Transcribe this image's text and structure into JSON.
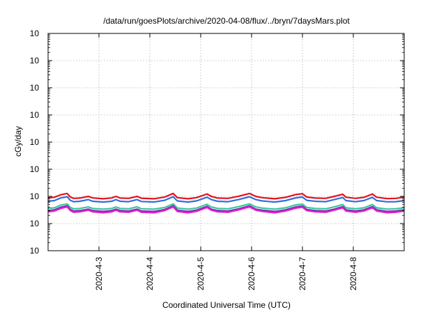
{
  "chart_data": {
    "type": "line",
    "title": "/data/run/goesPlots/archive/2020-04-08/flux/../bryn/7daysMars.plot",
    "xlabel": "Coordinated Universal Time (UTC)",
    "ylabel": "cGy/day",
    "yscale": "log",
    "ylim": [
      0.0001,
      10000
    ],
    "xlim": [
      "2020-04-02",
      "2020-04-09"
    ],
    "grid": true,
    "legend": "none",
    "y_ticks": [
      {
        "value": 0.0001,
        "base": "10",
        "exp": "-4"
      },
      {
        "value": 0.001,
        "base": "10",
        "exp": "-3"
      },
      {
        "value": 0.01,
        "base": "10",
        "exp": "-2"
      },
      {
        "value": 0.1,
        "base": "10",
        "exp": "-1"
      },
      {
        "value": 1,
        "base": "10",
        "exp": "0"
      },
      {
        "value": 10,
        "base": "10",
        "exp": "1"
      },
      {
        "value": 100,
        "base": "10",
        "exp": "2"
      },
      {
        "value": 1000,
        "base": "10",
        "exp": "3"
      },
      {
        "value": 10000,
        "base": "10",
        "exp": "4"
      }
    ],
    "x_ticks": [
      {
        "value": "2020-04-03",
        "label": "2020-4-3"
      },
      {
        "value": "2020-04-04",
        "label": "2020-4-4"
      },
      {
        "value": "2020-04-05",
        "label": "2020-4-5"
      },
      {
        "value": "2020-04-06",
        "label": "2020-4-6"
      },
      {
        "value": "2020-04-07",
        "label": "2020-4-7"
      },
      {
        "value": "2020-04-08",
        "label": "2020-4-8"
      }
    ],
    "series": [
      {
        "color": "#e8101a",
        "points": [
          [
            "2020-04-02T00:00",
            0.0088
          ],
          [
            "2020-04-02T03:00",
            0.0093
          ],
          [
            "2020-04-02T06:00",
            0.0115
          ],
          [
            "2020-04-02T09:00",
            0.0128
          ],
          [
            "2020-04-02T10:30",
            0.0095
          ],
          [
            "2020-04-02T12:00",
            0.0085
          ],
          [
            "2020-04-02T15:00",
            0.0087
          ],
          [
            "2020-04-02T19:00",
            0.01
          ],
          [
            "2020-04-02T21:00",
            0.0088
          ],
          [
            "2020-04-03T02:00",
            0.0082
          ],
          [
            "2020-04-03T06:00",
            0.0088
          ],
          [
            "2020-04-03T08:00",
            0.01
          ],
          [
            "2020-04-03T10:00",
            0.0087
          ],
          [
            "2020-04-03T14:00",
            0.0085
          ],
          [
            "2020-04-03T18:00",
            0.01
          ],
          [
            "2020-04-03T20:00",
            0.0086
          ],
          [
            "2020-04-04T02:00",
            0.0082
          ],
          [
            "2020-04-04T07:00",
            0.0095
          ],
          [
            "2020-04-04T11:00",
            0.0128
          ],
          [
            "2020-04-04T13:00",
            0.009
          ],
          [
            "2020-04-04T18:00",
            0.0082
          ],
          [
            "2020-04-04T22:00",
            0.009
          ],
          [
            "2020-04-05T03:00",
            0.0123
          ],
          [
            "2020-04-05T05:00",
            0.01
          ],
          [
            "2020-04-05T08:00",
            0.0087
          ],
          [
            "2020-04-05T13:00",
            0.0085
          ],
          [
            "2020-04-05T18:00",
            0.0102
          ],
          [
            "2020-04-05T23:00",
            0.0128
          ],
          [
            "2020-04-06T02:00",
            0.01
          ],
          [
            "2020-04-06T05:00",
            0.009
          ],
          [
            "2020-04-06T11:00",
            0.0082
          ],
          [
            "2020-04-06T16:00",
            0.0092
          ],
          [
            "2020-04-06T21:00",
            0.0118
          ],
          [
            "2020-04-07T00:00",
            0.0125
          ],
          [
            "2020-04-07T02:00",
            0.0095
          ],
          [
            "2020-04-07T06:00",
            0.0087
          ],
          [
            "2020-04-07T11:00",
            0.0085
          ],
          [
            "2020-04-07T15:00",
            0.01
          ],
          [
            "2020-04-07T19:00",
            0.012
          ],
          [
            "2020-04-07T20:30",
            0.0093
          ],
          [
            "2020-04-08T01:00",
            0.0085
          ],
          [
            "2020-04-08T05:00",
            0.0092
          ],
          [
            "2020-04-08T09:00",
            0.0122
          ],
          [
            "2020-04-08T11:00",
            0.0093
          ],
          [
            "2020-04-08T16:00",
            0.0083
          ],
          [
            "2020-04-08T20:00",
            0.0085
          ],
          [
            "2020-04-09T00:00",
            0.0093
          ]
        ]
      },
      {
        "color": "#2f6fe0",
        "points": [
          [
            "2020-04-02T00:00",
            0.0066
          ],
          [
            "2020-04-02T03:00",
            0.007
          ],
          [
            "2020-04-02T06:00",
            0.0088
          ],
          [
            "2020-04-02T09:00",
            0.0097
          ],
          [
            "2020-04-02T10:30",
            0.0072
          ],
          [
            "2020-04-02T12:00",
            0.0064
          ],
          [
            "2020-04-02T15:00",
            0.0066
          ],
          [
            "2020-04-02T19:00",
            0.0076
          ],
          [
            "2020-04-02T21:00",
            0.0066
          ],
          [
            "2020-04-03T02:00",
            0.0062
          ],
          [
            "2020-04-03T06:00",
            0.0066
          ],
          [
            "2020-04-03T08:00",
            0.0076
          ],
          [
            "2020-04-03T10:00",
            0.0066
          ],
          [
            "2020-04-03T14:00",
            0.0064
          ],
          [
            "2020-04-03T18:00",
            0.0076
          ],
          [
            "2020-04-03T20:00",
            0.0065
          ],
          [
            "2020-04-04T02:00",
            0.0062
          ],
          [
            "2020-04-04T07:00",
            0.0072
          ],
          [
            "2020-04-04T11:00",
            0.0097
          ],
          [
            "2020-04-04T13:00",
            0.0068
          ],
          [
            "2020-04-04T18:00",
            0.0062
          ],
          [
            "2020-04-04T22:00",
            0.0068
          ],
          [
            "2020-04-05T03:00",
            0.0093
          ],
          [
            "2020-04-05T05:00",
            0.0076
          ],
          [
            "2020-04-05T08:00",
            0.0066
          ],
          [
            "2020-04-05T13:00",
            0.0064
          ],
          [
            "2020-04-05T18:00",
            0.0077
          ],
          [
            "2020-04-05T23:00",
            0.0097
          ],
          [
            "2020-04-06T02:00",
            0.0076
          ],
          [
            "2020-04-06T05:00",
            0.0068
          ],
          [
            "2020-04-06T11:00",
            0.0062
          ],
          [
            "2020-04-06T16:00",
            0.007
          ],
          [
            "2020-04-06T21:00",
            0.0089
          ],
          [
            "2020-04-07T00:00",
            0.0095
          ],
          [
            "2020-04-07T02:00",
            0.0072
          ],
          [
            "2020-04-07T06:00",
            0.0066
          ],
          [
            "2020-04-07T11:00",
            0.0064
          ],
          [
            "2020-04-07T15:00",
            0.0076
          ],
          [
            "2020-04-07T19:00",
            0.0091
          ],
          [
            "2020-04-07T20:30",
            0.007
          ],
          [
            "2020-04-08T01:00",
            0.0064
          ],
          [
            "2020-04-08T05:00",
            0.007
          ],
          [
            "2020-04-08T09:00",
            0.0092
          ],
          [
            "2020-04-08T11:00",
            0.007
          ],
          [
            "2020-04-08T16:00",
            0.0063
          ],
          [
            "2020-04-08T20:00",
            0.0064
          ],
          [
            "2020-04-09T00:00",
            0.007
          ]
        ]
      },
      {
        "color": "#39c4a0",
        "points": [
          [
            "2020-04-02T00:00",
            0.0036
          ],
          [
            "2020-04-02T03:00",
            0.0038
          ],
          [
            "2020-04-02T06:00",
            0.0048
          ],
          [
            "2020-04-02T09:00",
            0.0053
          ],
          [
            "2020-04-02T10:30",
            0.0039
          ],
          [
            "2020-04-02T12:00",
            0.0035
          ],
          [
            "2020-04-02T15:00",
            0.0036
          ],
          [
            "2020-04-02T19:00",
            0.0041
          ],
          [
            "2020-04-02T21:00",
            0.0036
          ],
          [
            "2020-04-03T02:00",
            0.0034
          ],
          [
            "2020-04-03T06:00",
            0.0036
          ],
          [
            "2020-04-03T08:00",
            0.0041
          ],
          [
            "2020-04-03T10:00",
            0.0036
          ],
          [
            "2020-04-03T14:00",
            0.0035
          ],
          [
            "2020-04-03T18:00",
            0.0041
          ],
          [
            "2020-04-03T20:00",
            0.0035
          ],
          [
            "2020-04-04T02:00",
            0.0034
          ],
          [
            "2020-04-04T07:00",
            0.0039
          ],
          [
            "2020-04-04T11:00",
            0.0053
          ],
          [
            "2020-04-04T13:00",
            0.0037
          ],
          [
            "2020-04-04T18:00",
            0.0034
          ],
          [
            "2020-04-04T22:00",
            0.0037
          ],
          [
            "2020-04-05T03:00",
            0.0051
          ],
          [
            "2020-04-05T05:00",
            0.0041
          ],
          [
            "2020-04-05T08:00",
            0.0036
          ],
          [
            "2020-04-05T13:00",
            0.0035
          ],
          [
            "2020-04-05T18:00",
            0.0042
          ],
          [
            "2020-04-05T23:00",
            0.0053
          ],
          [
            "2020-04-06T02:00",
            0.0041
          ],
          [
            "2020-04-06T05:00",
            0.0037
          ],
          [
            "2020-04-06T11:00",
            0.0034
          ],
          [
            "2020-04-06T16:00",
            0.0038
          ],
          [
            "2020-04-06T21:00",
            0.0049
          ],
          [
            "2020-04-07T00:00",
            0.0052
          ],
          [
            "2020-04-07T02:00",
            0.0039
          ],
          [
            "2020-04-07T06:00",
            0.0036
          ],
          [
            "2020-04-07T11:00",
            0.0035
          ],
          [
            "2020-04-07T15:00",
            0.0041
          ],
          [
            "2020-04-07T19:00",
            0.005
          ],
          [
            "2020-04-07T20:30",
            0.0038
          ],
          [
            "2020-04-08T01:00",
            0.0035
          ],
          [
            "2020-04-08T05:00",
            0.0038
          ],
          [
            "2020-04-08T09:00",
            0.005
          ],
          [
            "2020-04-08T11:00",
            0.0038
          ],
          [
            "2020-04-08T16:00",
            0.0034
          ],
          [
            "2020-04-08T20:00",
            0.0035
          ],
          [
            "2020-04-09T00:00",
            0.0038
          ]
        ]
      },
      {
        "color": "#7a2fb0",
        "points": [
          [
            "2020-04-02T00:00",
            0.003
          ],
          [
            "2020-04-02T03:00",
            0.0032
          ],
          [
            "2020-04-02T06:00",
            0.004
          ],
          [
            "2020-04-02T09:00",
            0.0045
          ],
          [
            "2020-04-02T10:30",
            0.0033
          ],
          [
            "2020-04-02T12:00",
            0.0029
          ],
          [
            "2020-04-02T15:00",
            0.003
          ],
          [
            "2020-04-02T19:00",
            0.0034
          ],
          [
            "2020-04-02T21:00",
            0.003
          ],
          [
            "2020-04-03T02:00",
            0.0028
          ],
          [
            "2020-04-03T06:00",
            0.003
          ],
          [
            "2020-04-03T08:00",
            0.0034
          ],
          [
            "2020-04-03T10:00",
            0.003
          ],
          [
            "2020-04-03T14:00",
            0.0029
          ],
          [
            "2020-04-03T18:00",
            0.0034
          ],
          [
            "2020-04-03T20:00",
            0.0029
          ],
          [
            "2020-04-04T02:00",
            0.0028
          ],
          [
            "2020-04-04T07:00",
            0.0033
          ],
          [
            "2020-04-04T11:00",
            0.0045
          ],
          [
            "2020-04-04T13:00",
            0.0031
          ],
          [
            "2020-04-04T18:00",
            0.0028
          ],
          [
            "2020-04-04T22:00",
            0.0031
          ],
          [
            "2020-04-05T03:00",
            0.0043
          ],
          [
            "2020-04-05T05:00",
            0.0034
          ],
          [
            "2020-04-05T08:00",
            0.003
          ],
          [
            "2020-04-05T13:00",
            0.0029
          ],
          [
            "2020-04-05T18:00",
            0.0035
          ],
          [
            "2020-04-05T23:00",
            0.0045
          ],
          [
            "2020-04-06T02:00",
            0.0034
          ],
          [
            "2020-04-06T05:00",
            0.0031
          ],
          [
            "2020-04-06T11:00",
            0.0028
          ],
          [
            "2020-04-06T16:00",
            0.0032
          ],
          [
            "2020-04-06T21:00",
            0.0041
          ],
          [
            "2020-04-07T00:00",
            0.0044
          ],
          [
            "2020-04-07T02:00",
            0.0033
          ],
          [
            "2020-04-07T06:00",
            0.003
          ],
          [
            "2020-04-07T11:00",
            0.0029
          ],
          [
            "2020-04-07T15:00",
            0.0034
          ],
          [
            "2020-04-07T19:00",
            0.0042
          ],
          [
            "2020-04-07T20:30",
            0.0032
          ],
          [
            "2020-04-08T01:00",
            0.0029
          ],
          [
            "2020-04-08T05:00",
            0.0032
          ],
          [
            "2020-04-08T09:00",
            0.0042
          ],
          [
            "2020-04-08T11:00",
            0.0032
          ],
          [
            "2020-04-08T16:00",
            0.0028
          ],
          [
            "2020-04-08T20:00",
            0.0029
          ],
          [
            "2020-04-09T00:00",
            0.0032
          ]
        ]
      },
      {
        "color": "#e81ccf",
        "points": [
          [
            "2020-04-02T00:00",
            0.0027
          ],
          [
            "2020-04-02T03:00",
            0.0029
          ],
          [
            "2020-04-02T06:00",
            0.0036
          ],
          [
            "2020-04-02T09:00",
            0.0041
          ],
          [
            "2020-04-02T10:30",
            0.003
          ],
          [
            "2020-04-02T12:00",
            0.0026
          ],
          [
            "2020-04-02T15:00",
            0.0027
          ],
          [
            "2020-04-02T19:00",
            0.0031
          ],
          [
            "2020-04-02T21:00",
            0.0027
          ],
          [
            "2020-04-03T02:00",
            0.0025
          ],
          [
            "2020-04-03T06:00",
            0.0027
          ],
          [
            "2020-04-03T08:00",
            0.0031
          ],
          [
            "2020-04-03T10:00",
            0.0027
          ],
          [
            "2020-04-03T14:00",
            0.0026
          ],
          [
            "2020-04-03T18:00",
            0.0031
          ],
          [
            "2020-04-03T20:00",
            0.0026
          ],
          [
            "2020-04-04T02:00",
            0.0025
          ],
          [
            "2020-04-04T07:00",
            0.003
          ],
          [
            "2020-04-04T11:00",
            0.0041
          ],
          [
            "2020-04-04T13:00",
            0.0028
          ],
          [
            "2020-04-04T18:00",
            0.0025
          ],
          [
            "2020-04-04T22:00",
            0.0028
          ],
          [
            "2020-04-05T03:00",
            0.0039
          ],
          [
            "2020-04-05T05:00",
            0.0031
          ],
          [
            "2020-04-05T08:00",
            0.0027
          ],
          [
            "2020-04-05T13:00",
            0.0026
          ],
          [
            "2020-04-05T18:00",
            0.0032
          ],
          [
            "2020-04-05T23:00",
            0.0041
          ],
          [
            "2020-04-06T02:00",
            0.0031
          ],
          [
            "2020-04-06T05:00",
            0.0028
          ],
          [
            "2020-04-06T11:00",
            0.0025
          ],
          [
            "2020-04-06T16:00",
            0.0029
          ],
          [
            "2020-04-06T21:00",
            0.0037
          ],
          [
            "2020-04-07T00:00",
            0.004
          ],
          [
            "2020-04-07T02:00",
            0.003
          ],
          [
            "2020-04-07T06:00",
            0.0027
          ],
          [
            "2020-04-07T11:00",
            0.0026
          ],
          [
            "2020-04-07T15:00",
            0.0031
          ],
          [
            "2020-04-07T19:00",
            0.0038
          ],
          [
            "2020-04-07T20:30",
            0.0029
          ],
          [
            "2020-04-08T01:00",
            0.0026
          ],
          [
            "2020-04-08T05:00",
            0.0029
          ],
          [
            "2020-04-08T09:00",
            0.0038
          ],
          [
            "2020-04-08T11:00",
            0.0029
          ],
          [
            "2020-04-08T16:00",
            0.0025
          ],
          [
            "2020-04-08T20:00",
            0.0026
          ],
          [
            "2020-04-09T00:00",
            0.0029
          ]
        ]
      }
    ]
  }
}
